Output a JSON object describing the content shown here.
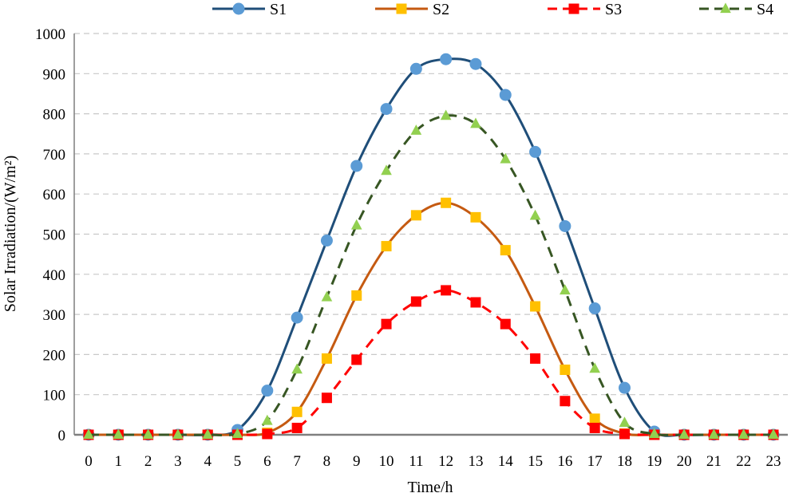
{
  "chart_data": {
    "type": "line",
    "title": "",
    "xlabel": "Time/h",
    "ylabel": "Solar Irradiation/(W/m²)",
    "xlim": [
      0,
      23
    ],
    "ylim": [
      0,
      1000
    ],
    "yticks": [
      0,
      100,
      200,
      300,
      400,
      500,
      600,
      700,
      800,
      900,
      1000
    ],
    "x": [
      0,
      1,
      2,
      3,
      4,
      5,
      6,
      7,
      8,
      9,
      10,
      11,
      12,
      13,
      14,
      15,
      16,
      17,
      18,
      19,
      20,
      21,
      22,
      23
    ],
    "x_tick_labels": [
      "0",
      "1",
      "2",
      "3",
      "4",
      "5",
      "6",
      "7",
      "8",
      "9",
      "10",
      "11",
      "12",
      "13",
      "14",
      "15",
      "16",
      "17",
      "18",
      "19",
      "20",
      "21",
      "22",
      "23"
    ],
    "y_tick_labels": [
      "0",
      "100",
      "200",
      "300",
      "400",
      "500",
      "600",
      "700",
      "800",
      "900",
      "1000"
    ],
    "grid": true,
    "legend_position": "top",
    "series": [
      {
        "name": "S1",
        "color": "#1F4E79",
        "marker_color": "#5B9BD5",
        "marker": "circle",
        "dash": "solid",
        "values": [
          0,
          0,
          0,
          0,
          0,
          12,
          110,
          292,
          484,
          670,
          812,
          912,
          936,
          924,
          847,
          705,
          520,
          315,
          117,
          8,
          0,
          0,
          0,
          0
        ]
      },
      {
        "name": "S2",
        "color": "#C55A11",
        "marker_color": "#FFC000",
        "marker": "square",
        "dash": "solid",
        "values": [
          0,
          0,
          0,
          0,
          0,
          0,
          5,
          57,
          190,
          347,
          470,
          547,
          578,
          542,
          460,
          320,
          162,
          40,
          3,
          0,
          0,
          0,
          0,
          0
        ]
      },
      {
        "name": "S3",
        "color": "#FF0000",
        "marker_color": "#FF0000",
        "marker": "square",
        "dash": "dashed",
        "values": [
          0,
          0,
          0,
          0,
          0,
          0,
          2,
          17,
          92,
          187,
          276,
          332,
          360,
          330,
          276,
          190,
          84,
          17,
          2,
          0,
          0,
          0,
          0,
          0
        ]
      },
      {
        "name": "S4",
        "color": "#375623",
        "marker_color": "#92D050",
        "marker": "triangle",
        "dash": "dashed",
        "values": [
          0,
          0,
          0,
          0,
          0,
          2,
          35,
          163,
          343,
          522,
          658,
          758,
          795,
          775,
          687,
          546,
          360,
          165,
          30,
          2,
          0,
          0,
          0,
          0
        ]
      }
    ]
  }
}
